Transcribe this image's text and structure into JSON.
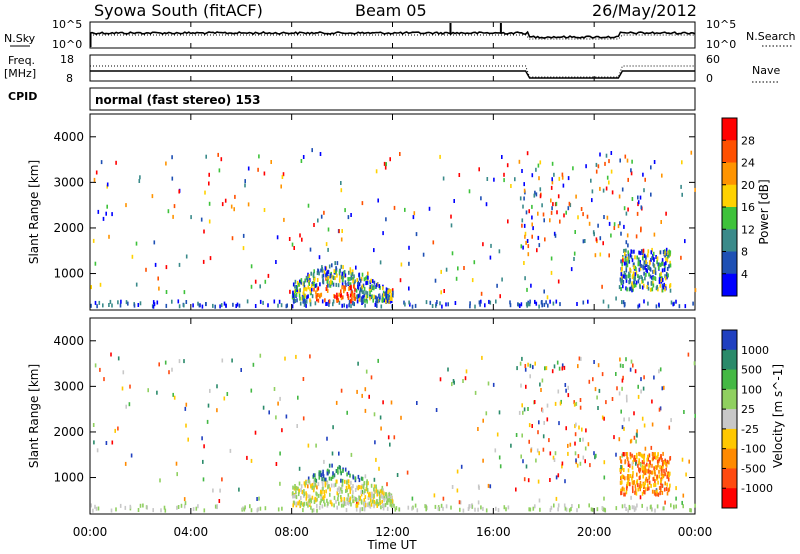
{
  "header": {
    "station": "Syowa South (fitACF)",
    "beam": "Beam 05",
    "date": "26/May/2012"
  },
  "sky_panel": {
    "left_label": "N.Sky",
    "right_label": "N.Search",
    "ticks_left": [
      "10^5",
      "10^0"
    ],
    "ticks_right": [
      "10^5",
      "10^0"
    ]
  },
  "freq_panel": {
    "left_label_1": "Freq.",
    "left_label_2": "[MHz]",
    "ticks_left": [
      "18",
      "8"
    ],
    "right_label": "Nave",
    "ticks_right": [
      "60",
      "0"
    ]
  },
  "cpid": {
    "label": "CPID",
    "text": "normal (fast stereo) 153"
  },
  "chart_data": [
    {
      "type": "heatmap",
      "title": "",
      "ylabel": "Slant Range [km]",
      "yticks": [
        "1000",
        "2000",
        "3000",
        "4000"
      ],
      "ylim": [
        200,
        4500
      ],
      "colorbar_label": "Power [dB]",
      "colorbar_ticks": [
        "4",
        "8",
        "12",
        "16",
        "20",
        "24",
        "28"
      ],
      "colors": [
        "#0000ff",
        "#1e50b4",
        "#3a8a8a",
        "#3ec23a",
        "#ffd200",
        "#ff9400",
        "#ff5000",
        "#ff0000"
      ],
      "xlim_hours": [
        0,
        24
      ]
    },
    {
      "type": "heatmap",
      "title": "",
      "ylabel": "Slant Range [km]",
      "yticks": [
        "1000",
        "2000",
        "3000",
        "4000"
      ],
      "ylim": [
        200,
        4500
      ],
      "colorbar_label": "Velocity [m s^-1]",
      "colorbar_ticks": [
        "1000",
        "500",
        "100",
        "25",
        "-25",
        "-100",
        "-500",
        "-1000"
      ],
      "colors": [
        "#2040c0",
        "#2a8a6a",
        "#44b844",
        "#90d060",
        "#c8c8c8",
        "#ffc800",
        "#ff8a00",
        "#ff4a10",
        "#ff0000"
      ],
      "xlim_hours": [
        0,
        24
      ]
    }
  ],
  "x_axis": {
    "ticks": [
      "00:00",
      "04:00",
      "08:00",
      "12:00",
      "16:00",
      "20:00",
      "00:00"
    ],
    "label": "Time UT"
  }
}
